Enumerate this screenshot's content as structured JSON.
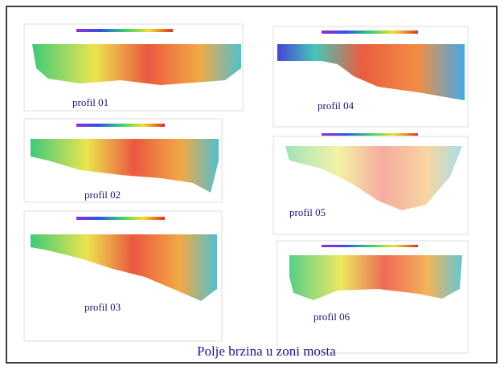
{
  "slide": {
    "title": "Polje brzina u zoni mosta",
    "panels": [
      {
        "label": "profil 01"
      },
      {
        "label": "profil 04"
      },
      {
        "label": "profil 02"
      },
      {
        "label": "profil 05"
      },
      {
        "label": "profil 03"
      },
      {
        "label": "profil 06"
      }
    ]
  }
}
